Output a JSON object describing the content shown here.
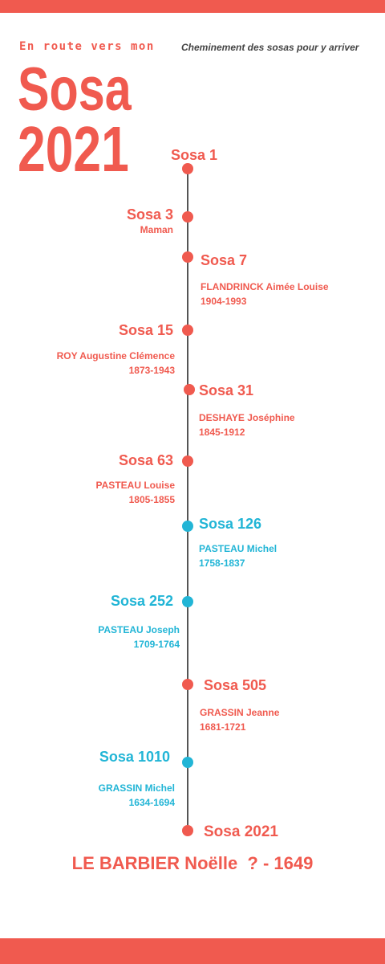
{
  "header": {
    "pre_title": "En route vers mon",
    "subtitle": "Cheminement des sosas pour y arriver",
    "title_line1": "Sosa",
    "title_line2": "2021"
  },
  "colors": {
    "red": "#F05A4F",
    "blue": "#22B5D6"
  },
  "timeline": [
    {
      "label": "Sosa 1"
    },
    {
      "label": "Sosa 3",
      "note": "Maman"
    },
    {
      "label": "Sosa 7",
      "name": "FLANDRINCK Aimée Louise",
      "dates": "1904-1993"
    },
    {
      "label": "Sosa 15",
      "name": "ROY Augustine Clémence",
      "dates": "1873-1943"
    },
    {
      "label": "Sosa 31",
      "name": "DESHAYE Joséphine",
      "dates": "1845-1912"
    },
    {
      "label": "Sosa 63",
      "name": "PASTEAU Louise",
      "dates": "1805-1855"
    },
    {
      "label": "Sosa 126",
      "name": "PASTEAU Michel",
      "dates": "1758-1837"
    },
    {
      "label": "Sosa 252",
      "name": "PASTEAU Joseph",
      "dates": "1709-1764"
    },
    {
      "label": "Sosa 505",
      "name": "GRASSIN Jeanne",
      "dates": "1681-1721"
    },
    {
      "label": "Sosa 1010",
      "name": "GRASSIN Michel",
      "dates": "1634-1694"
    },
    {
      "label": "Sosa 2021"
    }
  ],
  "final": "LE BARBIER Noëlle  ? - 1649"
}
